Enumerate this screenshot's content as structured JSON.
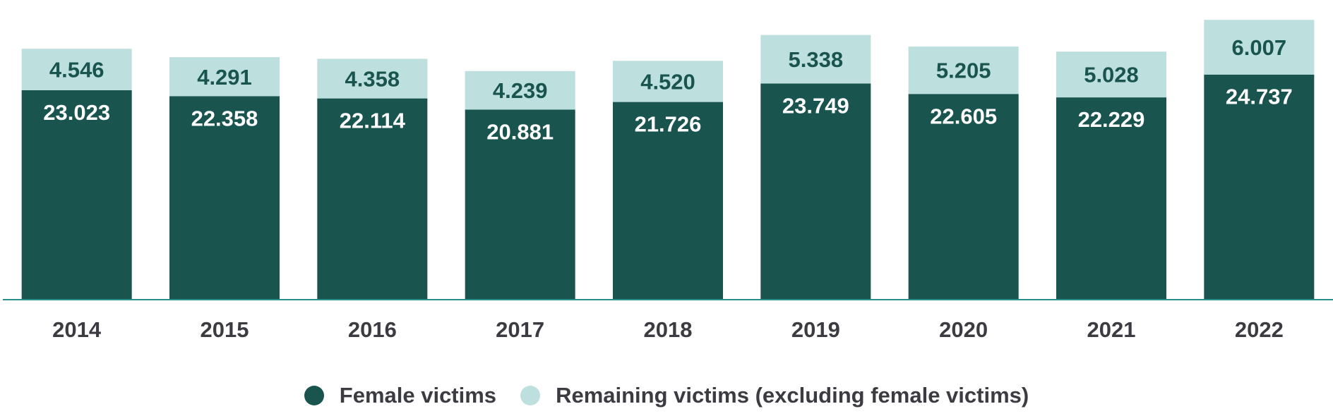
{
  "chart_data": {
    "type": "bar",
    "stacked": true,
    "categories": [
      "2014",
      "2015",
      "2016",
      "2017",
      "2018",
      "2019",
      "2020",
      "2021",
      "2022"
    ],
    "series": [
      {
        "name": "Female victims",
        "color": "#19544f",
        "values": [
          23023,
          22358,
          22114,
          20881,
          21726,
          23749,
          22605,
          22229,
          24737
        ],
        "labels": [
          "23.023",
          "22.358",
          "22.114",
          "20.881",
          "21.726",
          "23.749",
          "22.605",
          "22.229",
          "24.737"
        ]
      },
      {
        "name": "Remaining victims (excluding female victims)",
        "color": "#bde0df",
        "values": [
          4546,
          4291,
          4358,
          4239,
          4520,
          5338,
          5205,
          5028,
          6007
        ],
        "labels": [
          "4.546",
          "4.291",
          "4.358",
          "4.239",
          "4.520",
          "5.338",
          "5.205",
          "5.028",
          "6.007"
        ]
      }
    ],
    "ylim": [
      0,
      32000
    ],
    "grid": false,
    "legend_position": "bottom",
    "axis_color": "#2a8f88"
  }
}
